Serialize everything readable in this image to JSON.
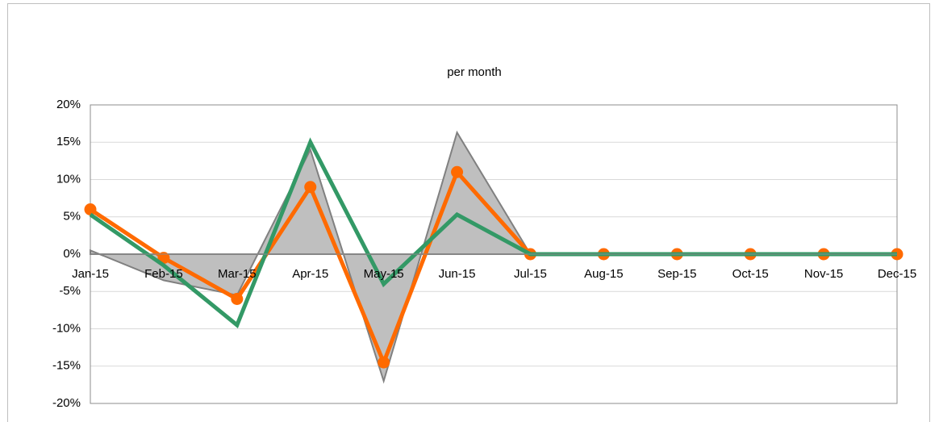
{
  "chart_data": {
    "type": "line",
    "title": "per month",
    "categories": [
      "Jan-15",
      "Feb-15",
      "Mar-15",
      "Apr-15",
      "May-15",
      "Jun-15",
      "Jul-15",
      "Aug-15",
      "Sep-15",
      "Oct-15",
      "Nov-15",
      "Dec-15"
    ],
    "series": [
      {
        "type": "area",
        "color": "#bfbfbf",
        "values": [
          0.5,
          -3.5,
          -5.5,
          14,
          -17,
          16.3,
          0,
          0,
          0,
          0,
          0,
          0
        ]
      },
      {
        "type": "line",
        "color": "#ff6a00",
        "markers": true,
        "values": [
          6,
          -0.5,
          -6,
          9,
          -14.5,
          11,
          0,
          0,
          0,
          0,
          0,
          0
        ]
      },
      {
        "type": "line",
        "color": "#339966",
        "markers": false,
        "values": [
          5.3,
          -1.5,
          -9.5,
          15,
          -4,
          5.3,
          0,
          0,
          0,
          0,
          0,
          0
        ]
      }
    ],
    "ylim": [
      -20,
      20
    ],
    "yticks": [
      {
        "value": -20,
        "label": "-20%"
      },
      {
        "value": -15,
        "label": "-15%"
      },
      {
        "value": -10,
        "label": "-10%"
      },
      {
        "value": -5,
        "label": "-5%"
      },
      {
        "value": 0,
        "label": "0%"
      },
      {
        "value": 5,
        "label": "5%"
      },
      {
        "value": 10,
        "label": "10%"
      },
      {
        "value": 15,
        "label": "15%"
      },
      {
        "value": 20,
        "label": "20%"
      }
    ],
    "grid": true
  }
}
